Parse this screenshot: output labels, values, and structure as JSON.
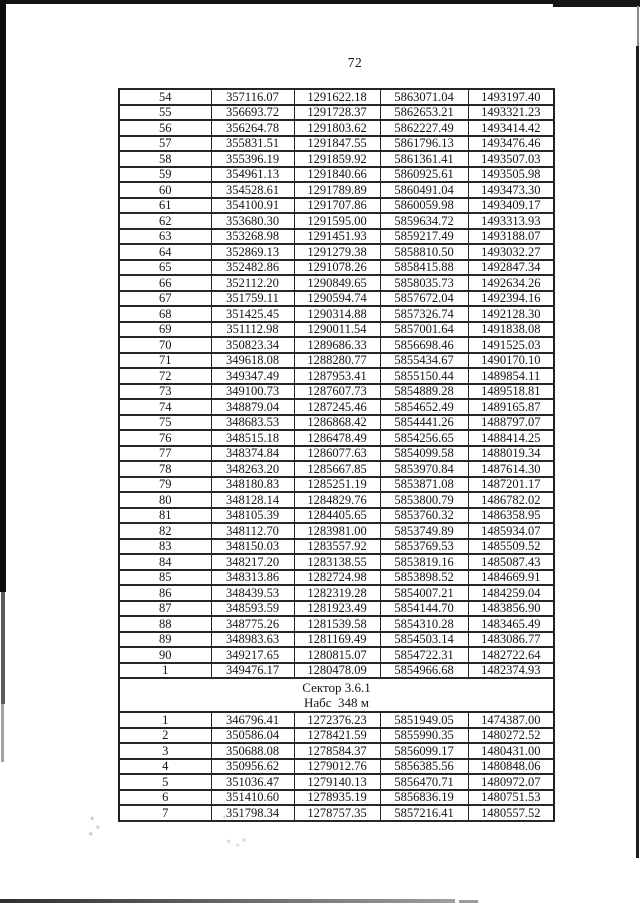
{
  "page": {
    "number": "72"
  },
  "colors": {
    "text": "#141414",
    "table_border": "#262626",
    "scan_edge": "#141414"
  },
  "table": {
    "columns": 5,
    "sections": [
      {
        "type": "rows",
        "rows": [
          [
            "54",
            "357116.07",
            "1291622.18",
            "5863071.04",
            "1493197.40"
          ],
          [
            "55",
            "356693.72",
            "1291728.37",
            "5862653.21",
            "1493321.23"
          ],
          [
            "56",
            "356264.78",
            "1291803.62",
            "5862227.49",
            "1493414.42"
          ],
          [
            "57",
            "355831.51",
            "1291847.55",
            "5861796.13",
            "1493476.46"
          ],
          [
            "58",
            "355396.19",
            "1291859.92",
            "5861361.41",
            "1493507.03"
          ],
          [
            "59",
            "354961.13",
            "1291840.66",
            "5860925.61",
            "1493505.98"
          ],
          [
            "60",
            "354528.61",
            "1291789.89",
            "5860491.04",
            "1493473.30"
          ],
          [
            "61",
            "354100.91",
            "1291707.86",
            "5860059.98",
            "1493409.17"
          ],
          [
            "62",
            "353680.30",
            "1291595.00",
            "5859634.72",
            "1493313.93"
          ],
          [
            "63",
            "353268.98",
            "1291451.93",
            "5859217.49",
            "1493188.07"
          ],
          [
            "64",
            "352869.13",
            "1291279.38",
            "5858810.50",
            "1493032.27"
          ],
          [
            "65",
            "352482.86",
            "1291078.26",
            "5858415.88",
            "1492847.34"
          ],
          [
            "66",
            "352112.20",
            "1290849.65",
            "5858035.73",
            "1492634.26"
          ],
          [
            "67",
            "351759.11",
            "1290594.74",
            "5857672.04",
            "1492394.16"
          ],
          [
            "68",
            "351425.45",
            "1290314.88",
            "5857326.74",
            "1492128.30"
          ],
          [
            "69",
            "351112.98",
            "1290011.54",
            "5857001.64",
            "1491838.08"
          ],
          [
            "70",
            "350823.34",
            "1289686.33",
            "5856698.46",
            "1491525.03"
          ],
          [
            "71",
            "349618.08",
            "1288280.77",
            "5855434.67",
            "1490170.10"
          ],
          [
            "72",
            "349347.49",
            "1287953.41",
            "5855150.44",
            "1489854.11"
          ],
          [
            "73",
            "349100.73",
            "1287607.73",
            "5854889.28",
            "1489518.81"
          ],
          [
            "74",
            "348879.04",
            "1287245.46",
            "5854652.49",
            "1489165.87"
          ],
          [
            "75",
            "348683.53",
            "1286868.42",
            "5854441.26",
            "1488797.07"
          ],
          [
            "76",
            "348515.18",
            "1286478.49",
            "5854256.65",
            "1488414.25"
          ],
          [
            "77",
            "348374.84",
            "1286077.63",
            "5854099.58",
            "1488019.34"
          ],
          [
            "78",
            "348263.20",
            "1285667.85",
            "5853970.84",
            "1487614.30"
          ],
          [
            "79",
            "348180.83",
            "1285251.19",
            "5853871.08",
            "1487201.17"
          ],
          [
            "80",
            "348128.14",
            "1284829.76",
            "5853800.79",
            "1486782.02"
          ],
          [
            "81",
            "348105.39",
            "1284405.65",
            "5853760.32",
            "1486358.95"
          ],
          [
            "82",
            "348112.70",
            "1283981.00",
            "5853749.89",
            "1485934.07"
          ],
          [
            "83",
            "348150.03",
            "1283557.92",
            "5853769.53",
            "1485509.52"
          ],
          [
            "84",
            "348217.20",
            "1283138.55",
            "5853819.16",
            "1485087.43"
          ],
          [
            "85",
            "348313.86",
            "1282724.98",
            "5853898.52",
            "1484669.91"
          ],
          [
            "86",
            "348439.53",
            "1282319.28",
            "5854007.21",
            "1484259.04"
          ],
          [
            "87",
            "348593.59",
            "1281923.49",
            "5854144.70",
            "1483856.90"
          ],
          [
            "88",
            "348775.26",
            "1281539.58",
            "5854310.28",
            "1483465.49"
          ],
          [
            "89",
            "348983.63",
            "1281169.49",
            "5854503.14",
            "1483086.77"
          ],
          [
            "90",
            "349217.65",
            "1280815.07",
            "5854722.31",
            "1482722.64"
          ],
          [
            "1",
            "349476.17",
            "1280478.09",
            "5854966.68",
            "1482374.93"
          ]
        ]
      },
      {
        "type": "header",
        "lines": [
          "Сектор 3.6.1",
          "Набс  348 м"
        ]
      },
      {
        "type": "rows",
        "rows": [
          [
            "1",
            "346796.41",
            "1272376.23",
            "5851949.05",
            "1474387.00"
          ],
          [
            "2",
            "350586.04",
            "1278421.59",
            "5855990.35",
            "1480272.52"
          ],
          [
            "3",
            "350688.08",
            "1278584.37",
            "5856099.17",
            "1480431.00"
          ],
          [
            "4",
            "350956.62",
            "1279012.76",
            "5856385.56",
            "1480848.06"
          ],
          [
            "5",
            "351036.47",
            "1279140.13",
            "5856470.71",
            "1480972.07"
          ],
          [
            "6",
            "351410.60",
            "1278935.19",
            "5856836.19",
            "1480751.53"
          ],
          [
            "7",
            "351798.34",
            "1278757.35",
            "5857216.41",
            "1480557.52"
          ]
        ]
      }
    ]
  }
}
